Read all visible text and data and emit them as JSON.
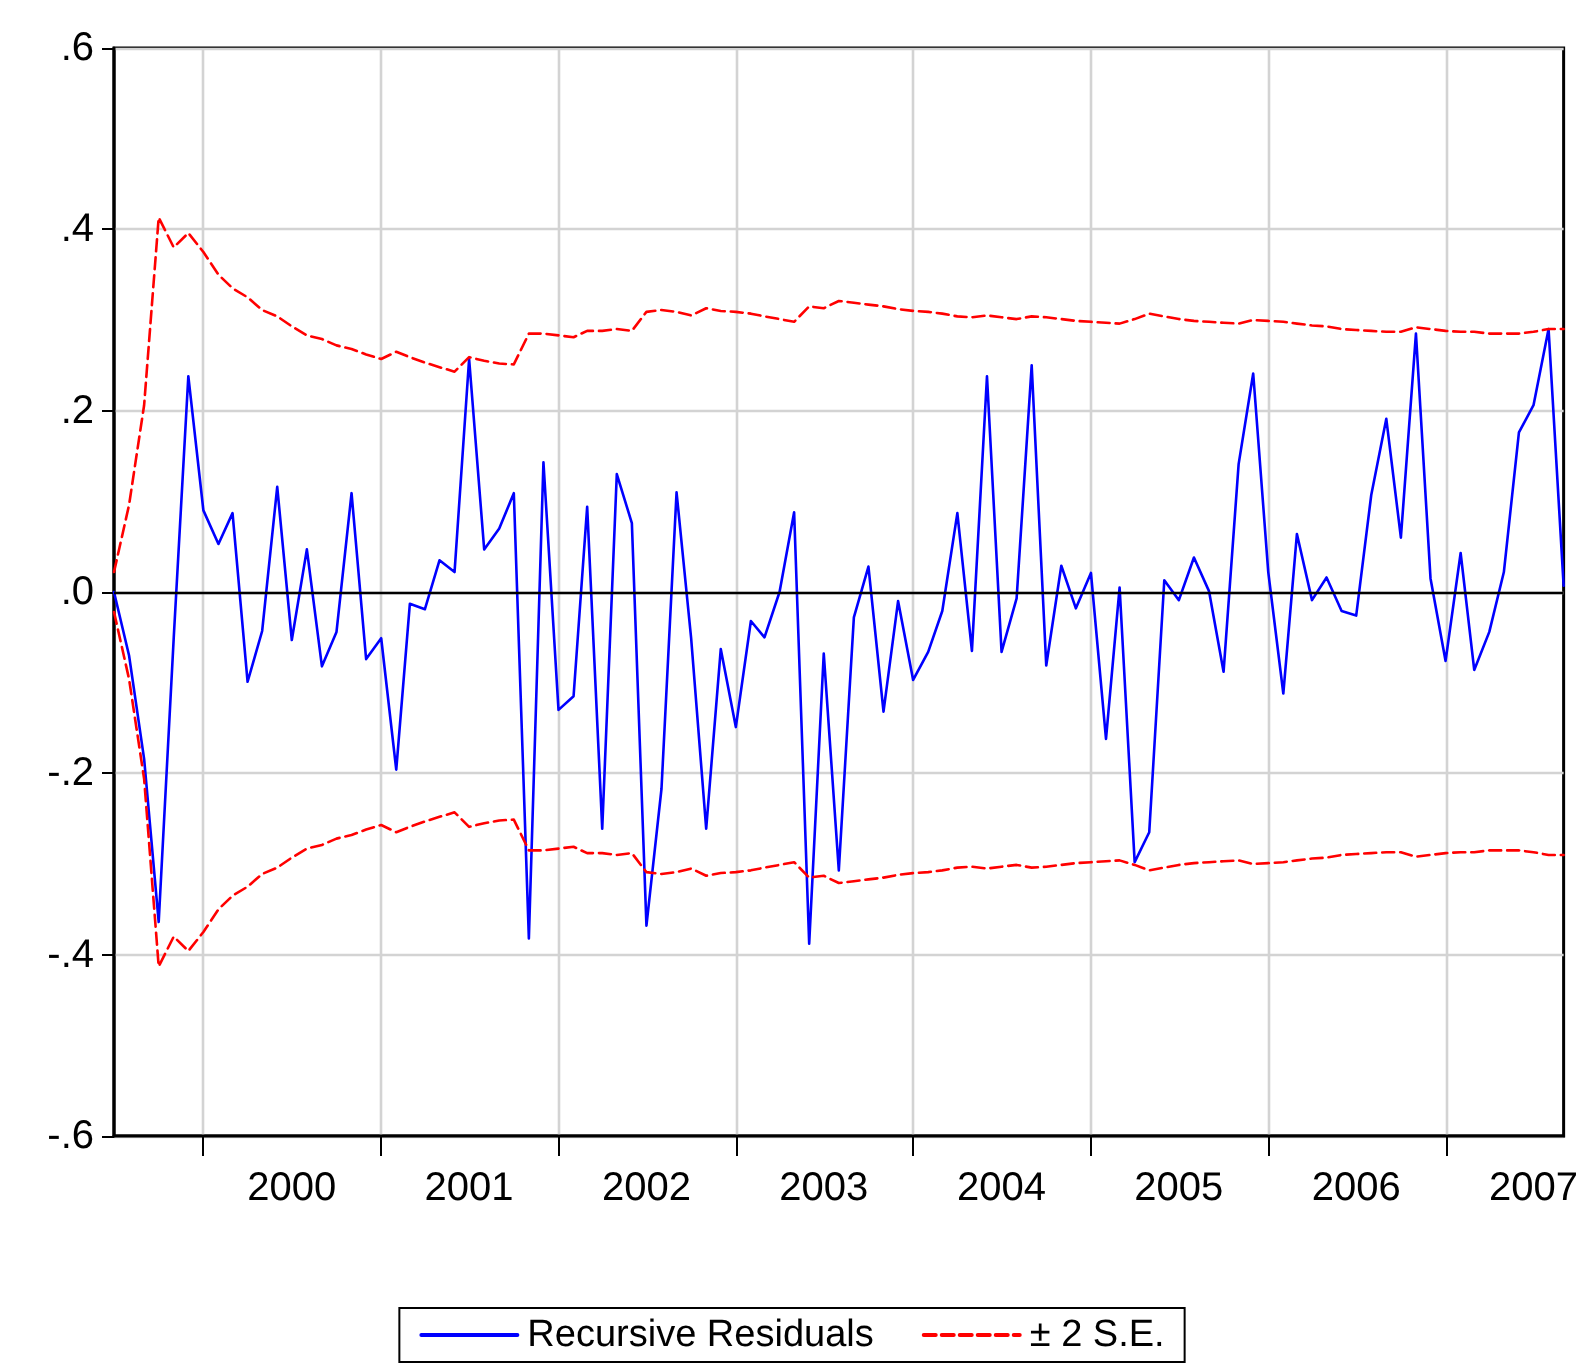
{
  "chart_data": {
    "type": "line",
    "x": [
      "1999-07",
      "1999-08",
      "1999-09",
      "1999-10",
      "1999-11",
      "1999-12",
      "2000-01",
      "2000-02",
      "2000-03",
      "2000-04",
      "2000-05",
      "2000-06",
      "2000-07",
      "2000-08",
      "2000-09",
      "2000-10",
      "2000-11",
      "2000-12",
      "2001-01",
      "2001-02",
      "2001-03",
      "2001-04",
      "2001-05",
      "2001-06",
      "2001-07",
      "2001-08",
      "2001-09",
      "2001-10",
      "2001-11",
      "2001-12",
      "2002-01",
      "2002-02",
      "2002-03",
      "2002-04",
      "2002-05",
      "2002-06",
      "2002-07",
      "2002-08",
      "2002-09",
      "2002-10",
      "2002-11",
      "2002-12",
      "2003-01",
      "2003-02",
      "2003-03",
      "2003-04",
      "2003-05",
      "2003-06",
      "2003-07",
      "2003-08",
      "2003-09",
      "2003-10",
      "2003-11",
      "2003-12",
      "2004-01",
      "2004-02",
      "2004-03",
      "2004-04",
      "2004-05",
      "2004-06",
      "2004-07",
      "2004-08",
      "2004-09",
      "2004-10",
      "2004-11",
      "2004-12",
      "2005-01",
      "2005-02",
      "2005-03",
      "2005-04",
      "2005-05",
      "2005-06",
      "2005-07",
      "2005-08",
      "2005-09",
      "2005-10",
      "2005-11",
      "2005-12",
      "2006-01",
      "2006-02",
      "2006-03",
      "2006-04",
      "2006-05",
      "2006-06",
      "2006-07",
      "2006-08",
      "2006-09",
      "2006-10",
      "2006-11",
      "2006-12",
      "2007-01",
      "2007-02",
      "2007-03",
      "2007-04",
      "2007-05",
      "2007-06",
      "2007-07",
      "2007-08",
      "2007-09"
    ],
    "series": [
      {
        "name": "Recursive Residuals",
        "color": "#0000ff",
        "line_style": "solid",
        "values": [
          0,
          -0.07,
          -0.184,
          -0.364,
          -0.05,
          0.238,
          0.09,
          0.053,
          0.087,
          -0.099,
          -0.043,
          0.116,
          -0.053,
          0.047,
          -0.082,
          -0.044,
          0.109,
          -0.074,
          -0.051,
          -0.196,
          -0.013,
          -0.019,
          0.035,
          0.022,
          0.257,
          0.047,
          0.07,
          0.109,
          -0.382,
          0.143,
          -0.13,
          -0.115,
          0.094,
          -0.261,
          0.13,
          0.076,
          -0.368,
          -0.217,
          0.11,
          -0.051,
          -0.261,
          -0.063,
          -0.149,
          -0.032,
          -0.05,
          0,
          0.088,
          -0.388,
          -0.068,
          -0.307,
          -0.028,
          0.028,
          -0.132,
          -0.01,
          -0.097,
          -0.066,
          -0.021,
          0.087,
          -0.065,
          0.238,
          -0.066,
          -0.007,
          0.25,
          -0.081,
          0.029,
          -0.018,
          0.021,
          -0.162,
          0.005,
          -0.298,
          -0.265,
          0.013,
          -0.009,
          0.038,
          0.001,
          -0.088,
          0.141,
          0.241,
          0.022,
          -0.112,
          0.064,
          -0.009,
          0.016,
          -0.021,
          -0.026,
          0.107,
          0.191,
          0.06,
          0.285,
          0.015,
          -0.076,
          0.043,
          -0.086,
          -0.044,
          0.022,
          0.176,
          0.206,
          0.29,
          0.007
        ]
      },
      {
        "name": "± 2 S.E.",
        "color": "#ff0000",
        "line_style": "dashed",
        "values": [
          0.022,
          0.096,
          0.206,
          0.413,
          0.38,
          0.396,
          0.375,
          0.35,
          0.335,
          0.325,
          0.311,
          0.304,
          0.293,
          0.283,
          0.279,
          0.272,
          0.268,
          0.262,
          0.257,
          0.265,
          0.259,
          0.253,
          0.248,
          0.243,
          0.259,
          0.255,
          0.252,
          0.251,
          0.285,
          0.285,
          0.283,
          0.281,
          0.288,
          0.288,
          0.29,
          0.288,
          0.309,
          0.311,
          0.309,
          0.305,
          0.313,
          0.31,
          0.309,
          0.307,
          0.304,
          0.301,
          0.298,
          0.315,
          0.313,
          0.321,
          0.319,
          0.317,
          0.315,
          0.312,
          0.31,
          0.309,
          0.307,
          0.304,
          0.303,
          0.305,
          0.303,
          0.301,
          0.304,
          0.303,
          0.301,
          0.299,
          0.298,
          0.297,
          0.296,
          0.301,
          0.307,
          0.304,
          0.301,
          0.299,
          0.298,
          0.297,
          0.296,
          0.3,
          0.299,
          0.298,
          0.296,
          0.294,
          0.293,
          0.29,
          0.289,
          0.288,
          0.287,
          0.287,
          0.292,
          0.29,
          0.288,
          0.287,
          0.287,
          0.285,
          0.285,
          0.285,
          0.287,
          0.29,
          0.29
        ]
      },
      {
        "color": "#ff0000",
        "line_style": "dashed",
        "values": [
          -0.022,
          -0.096,
          -0.206,
          -0.413,
          -0.38,
          -0.396,
          -0.375,
          -0.35,
          -0.335,
          -0.325,
          -0.311,
          -0.304,
          -0.293,
          -0.283,
          -0.279,
          -0.272,
          -0.268,
          -0.262,
          -0.257,
          -0.265,
          -0.259,
          -0.253,
          -0.248,
          -0.243,
          -0.259,
          -0.255,
          -0.252,
          -0.251,
          -0.285,
          -0.285,
          -0.283,
          -0.281,
          -0.288,
          -0.288,
          -0.29,
          -0.288,
          -0.309,
          -0.311,
          -0.309,
          -0.305,
          -0.313,
          -0.31,
          -0.309,
          -0.307,
          -0.304,
          -0.301,
          -0.298,
          -0.315,
          -0.313,
          -0.321,
          -0.319,
          -0.317,
          -0.315,
          -0.312,
          -0.31,
          -0.309,
          -0.307,
          -0.304,
          -0.303,
          -0.305,
          -0.303,
          -0.301,
          -0.304,
          -0.303,
          -0.301,
          -0.299,
          -0.298,
          -0.297,
          -0.296,
          -0.301,
          -0.307,
          -0.304,
          -0.301,
          -0.299,
          -0.298,
          -0.297,
          -0.296,
          -0.3,
          -0.299,
          -0.298,
          -0.296,
          -0.294,
          -0.293,
          -0.29,
          -0.289,
          -0.288,
          -0.287,
          -0.287,
          -0.292,
          -0.29,
          -0.288,
          -0.287,
          -0.287,
          -0.285,
          -0.285,
          -0.285,
          -0.287,
          -0.29,
          -0.29
        ]
      }
    ],
    "xlim": [
      "1999-07",
      "2007-09"
    ],
    "xticks": [
      {
        "value": "2000-01",
        "label": null
      },
      {
        "value": "2000-07",
        "label": "2000"
      },
      {
        "value": "2001-01",
        "label": null
      },
      {
        "value": "2001-07",
        "label": "2001"
      },
      {
        "value": "2002-01",
        "label": null
      },
      {
        "value": "2002-07",
        "label": "2002"
      },
      {
        "value": "2003-01",
        "label": null
      },
      {
        "value": "2003-07",
        "label": "2003"
      },
      {
        "value": "2004-01",
        "label": null
      },
      {
        "value": "2004-07",
        "label": "2004"
      },
      {
        "value": "2005-01",
        "label": null
      },
      {
        "value": "2005-07",
        "label": "2005"
      },
      {
        "value": "2006-01",
        "label": null
      },
      {
        "value": "2006-07",
        "label": "2006"
      },
      {
        "value": "2007-01",
        "label": null
      },
      {
        "value": "2007-07",
        "label": "2007"
      }
    ],
    "ylim": [
      -0.6,
      0.6
    ],
    "yticks": [
      {
        "value": -0.6,
        "label": "-.6"
      },
      {
        "value": -0.4,
        "label": "-.4"
      },
      {
        "value": -0.2,
        "label": "-.2"
      },
      {
        "value": 0,
        "label": ".0"
      },
      {
        "value": 0.2,
        "label": ".2"
      },
      {
        "value": 0.4,
        "label": ".4"
      },
      {
        "value": 0.6,
        "label": ".6"
      }
    ],
    "ref_lines": [
      {
        "axis": "y",
        "value": 0,
        "color": "#000000",
        "line_style": "solid"
      }
    ],
    "grid": true,
    "legend": "bottom",
    "marker": "none"
  }
}
